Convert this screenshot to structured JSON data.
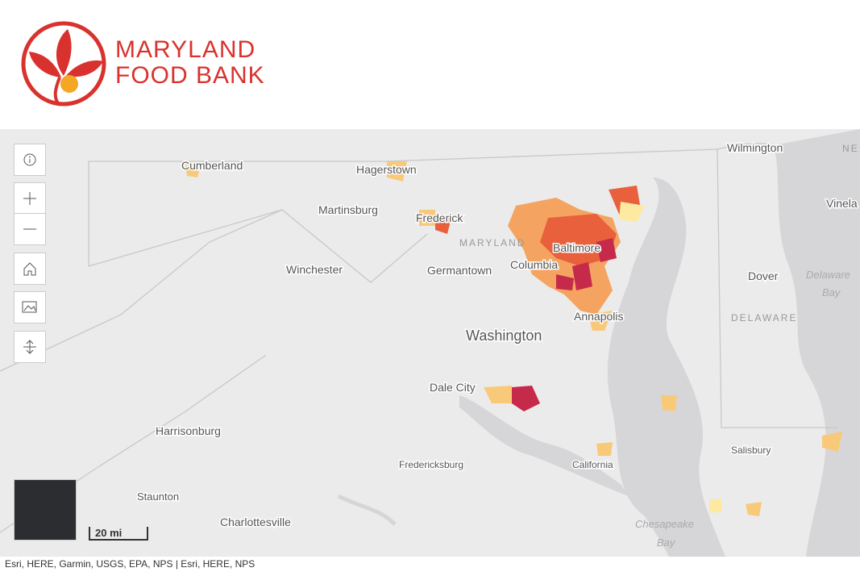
{
  "header": {
    "logo_line1": "MARYLAND",
    "logo_line2": "FOOD BANK"
  },
  "map": {
    "labels": [
      "Cumberland",
      "Hagerstown",
      "Martinsburg",
      "Frederick",
      "MARYLAND",
      "Baltimore",
      "Columbia",
      "Germantown",
      "Winchester",
      "Washington",
      "Annapolis",
      "Dale City",
      "Harrisonburg",
      "Fredericksburg",
      "California",
      "Staunton",
      "Charlottesville",
      "Wilmington",
      "Vinela",
      "NE",
      "Dover",
      "DELAWARE",
      "Delaware",
      "Bay",
      "Salisbury",
      "Chesapeake",
      "Bay"
    ],
    "scale_bar": "20 mi",
    "attribution": "Esri, HERE, Garmin, USGS, EPA, NPS | Esri, HERE, NPS"
  }
}
